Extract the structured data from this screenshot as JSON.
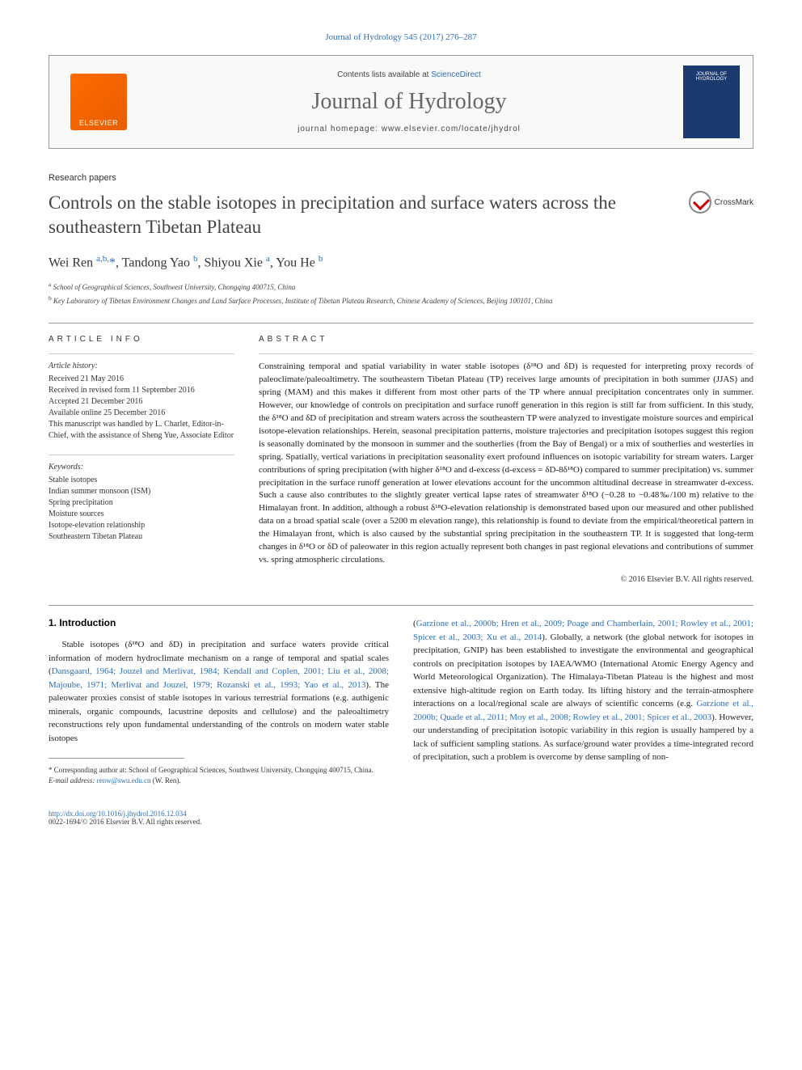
{
  "header": {
    "reference": "Journal of Hydrology 545 (2017) 276–287",
    "contents_prefix": "Contents lists available at ",
    "contents_link": "ScienceDirect",
    "journal_name": "Journal of Hydrology",
    "homepage_prefix": "journal homepage: ",
    "homepage_url": "www.elsevier.com/locate/jhydrol",
    "publisher": "ELSEVIER",
    "cover_text": "JOURNAL OF HYDROLOGY"
  },
  "paper": {
    "type": "Research papers",
    "title": "Controls on the stable isotopes in precipitation and surface waters across the southeastern Tibetan Plateau",
    "crossmark": "CrossMark",
    "authors_html": "Wei Ren <sup>a,b,</sup><span class=\"corr-star\">*</span>, Tandong Yao <sup>b</sup>, Shiyou Xie <sup>a</sup>, You He <sup>b</sup>",
    "affiliations": [
      {
        "sup": "a",
        "text": "School of Geographical Sciences, Southwest University, Chongqing 400715, China"
      },
      {
        "sup": "b",
        "text": "Key Laboratory of Tibetan Environment Changes and Land Surface Processes, Institute of Tibetan Plateau Research, Chinese Academy of Sciences, Beijing 100101, China"
      }
    ]
  },
  "article_info": {
    "head": "ARTICLE INFO",
    "history_head": "Article history:",
    "history": [
      "Received 21 May 2016",
      "Received in revised form 11 September 2016",
      "Accepted 21 December 2016",
      "Available online 25 December 2016",
      "This manuscript was handled by L. Charlet, Editor-in-Chief, with the assistance of Sheng Yue, Associate Editor"
    ],
    "keywords_head": "Keywords:",
    "keywords": [
      "Stable isotopes",
      "Indian summer monsoon (ISM)",
      "Spring precipitation",
      "Moisture sources",
      "Isotope-elevation relationship",
      "Southeastern Tibetan Plateau"
    ]
  },
  "abstract": {
    "head": "ABSTRACT",
    "text": "Constraining temporal and spatial variability in water stable isotopes (δ¹⁸O and δD) is requested for interpreting proxy records of paleoclimate/paleoaltimetry. The southeastern Tibetan Plateau (TP) receives large amounts of precipitation in both summer (JJAS) and spring (MAM) and this makes it different from most other parts of the TP where annual precipitation concentrates only in summer. However, our knowledge of controls on precipitation and surface runoff generation in this region is still far from sufficient. In this study, the δ¹⁸O and δD of precipitation and stream waters across the southeastern TP were analyzed to investigate moisture sources and empirical isotope-elevation relationships. Herein, seasonal precipitation patterns, moisture trajectories and precipitation isotopes suggest this region is seasonally dominated by the monsoon in summer and the southerlies (from the Bay of Bengal) or a mix of southerlies and westerlies in spring. Spatially, vertical variations in precipitation seasonality exert profound influences on isotopic variability for stream waters. Larger contributions of spring precipitation (with higher δ¹⁸O and d-excess (d-excess = δD-8δ¹⁸O) compared to summer precipitation) vs. summer precipitation in the surface runoff generation at lower elevations account for the uncommon altitudinal decrease in streamwater d-excess. Such a cause also contributes to the slightly greater vertical lapse rates of streamwater δ¹⁸O (−0.28 to −0.48‰/100 m) relative to the Himalayan front. In addition, although a robust δ¹⁸O-elevation relationship is demonstrated based upon our measured and other published data on a broad spatial scale (over a 5200 m elevation range), this relationship is found to deviate from the empirical/theoretical pattern in the Himalayan front, which is also caused by the substantial spring precipitation in the southeastern TP. It is suggested that long-term changes in δ¹⁸O or δD of paleowater in this region actually represent both changes in past regional elevations and contributions of summer vs. spring atmospheric circulations.",
    "copyright": "© 2016 Elsevier B.V. All rights reserved."
  },
  "body": {
    "section_title": "1. Introduction",
    "col1": "Stable isotopes (δ¹⁸O and δD) in precipitation and surface waters provide critical information of modern hydroclimate mechanism on a range of temporal and spatial scales (<span class=\"cite\">Dansgaard, 1964; Jouzel and Merlivat, 1984; Kendall and Coplen, 2001; Liu et al., 2008; Majoube, 1971; Merlivat and Jouzel, 1979; Rozanski et al., 1993; Yao et al., 2013</span>). The paleowater proxies consist of stable isotopes in various terrestrial formations (e.g. authigenic minerals, organic compounds, lacustrine deposits and cellulose) and the paleoaltimetry reconstructions rely upon fundamental understanding of the controls on modern water stable isotopes",
    "col2": "(<span class=\"cite\">Garzione et al., 2000b; Hren et al., 2009; Poage and Chamberlain, 2001; Rowley et al., 2001; Spicer et al., 2003; Xu et al., 2014</span>). Globally, a network (the global network for isotopes in precipitation, GNIP) has been established to investigate the environmental and geographical controls on precipitation isotopes by IAEA/WMO (International Atomic Energy Agency and World Meteorological Organization). The Himalaya-Tibetan Plateau is the highest and most extensive high-altitude region on Earth today. Its lifting history and the terrain-atmosphere interactions on a local/regional scale are always of scientific concerns (e.g. <span class=\"cite\">Garzione et al., 2000b; Quade et al., 2011; Moy et al., 2008; Rowley et al., 2001; Spicer et al., 2003</span>). However, our understanding of precipitation isotopic variability in this region is usually hampered by a lack of sufficient sampling stations. As surface/ground water provides a time-integrated record of precipitation, such a problem is overcome by dense sampling of non-"
  },
  "footnote": {
    "corr": "* Corresponding author at: School of Geographical Sciences, Southwest University, Chongqing 400715, China.",
    "email_label": "E-mail address:",
    "email": "renw@swu.edu.cn",
    "email_name": "(W. Ren)."
  },
  "bottom": {
    "doi": "http://dx.doi.org/10.1016/j.jhydrol.2016.12.034",
    "issn": "0022-1694/© 2016 Elsevier B.V. All rights reserved."
  },
  "colors": {
    "link": "#2a6ebb",
    "text": "#222222",
    "heading": "#444444",
    "border": "#999999",
    "elsevier_orange": "#ff6b00",
    "cover_blue": "#1a3a6e"
  }
}
